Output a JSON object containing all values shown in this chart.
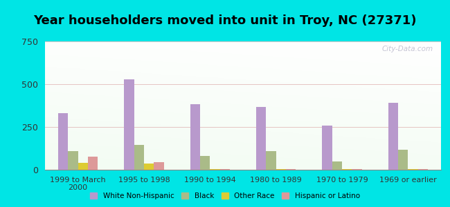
{
  "title": "Year householders moved into unit in Troy, NC (27371)",
  "categories": [
    "1999 to March\n2000",
    "1995 to 1998",
    "1990 to 1994",
    "1980 to 1989",
    "1970 to 1979",
    "1969 or earlier"
  ],
  "series": {
    "White Non-Hispanic": [
      330,
      530,
      385,
      365,
      258,
      390
    ],
    "Black": [
      110,
      145,
      80,
      110,
      50,
      115
    ],
    "Other Race": [
      42,
      35,
      5,
      5,
      5,
      5
    ],
    "Hispanic or Latino": [
      75,
      45,
      5,
      5,
      5,
      5
    ]
  },
  "colors": {
    "White Non-Hispanic": "#b899cc",
    "Black": "#aabb88",
    "Other Race": "#ddcc33",
    "Hispanic or Latino": "#dd9999"
  },
  "ylim": [
    0,
    750
  ],
  "yticks": [
    0,
    250,
    500,
    750
  ],
  "bar_width": 0.15,
  "outer_background": "#00e5e5",
  "title_fontsize": 13,
  "watermark": "City-Data.com"
}
